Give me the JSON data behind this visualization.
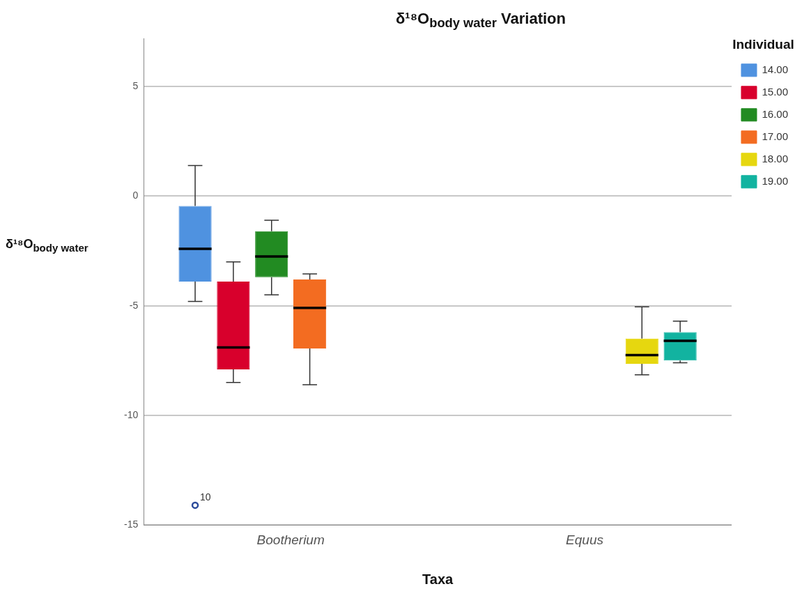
{
  "chart_data": {
    "type": "box",
    "title": "δ¹⁸O$_{body water}$ Variation",
    "xlabel": "Taxa",
    "ylabel": "δ¹⁸O$_{body water}$",
    "legend_title": "Individual",
    "categories": [
      "Bootherium",
      "Equus"
    ],
    "series": [
      {
        "name": "14.00",
        "color": "#4f92e0",
        "boxes": [
          {
            "low": -4.8,
            "q1": -3.9,
            "median": -2.4,
            "q3": -0.45,
            "high": 1.4,
            "outliers": [
              -14.1
            ]
          },
          null
        ]
      },
      {
        "name": "15.00",
        "color": "#d8002c",
        "boxes": [
          {
            "low": -8.5,
            "q1": -7.9,
            "median": -6.9,
            "q3": -3.9,
            "high": -3.0
          },
          null
        ]
      },
      {
        "name": "16.00",
        "color": "#228b22",
        "boxes": [
          {
            "low": -4.5,
            "q1": -3.7,
            "median": -2.75,
            "q3": -1.6,
            "high": -1.1
          },
          null
        ]
      },
      {
        "name": "17.00",
        "color": "#f36c21",
        "boxes": [
          {
            "low": -8.6,
            "q1": -6.95,
            "median": -5.1,
            "q3": -3.8,
            "high": -3.55
          },
          null
        ]
      },
      {
        "name": "18.00",
        "color": "#e6d70f",
        "boxes": [
          null,
          {
            "low": -8.15,
            "q1": -7.65,
            "median": -7.25,
            "q3": -6.5,
            "high": -5.05
          }
        ]
      },
      {
        "name": "19.00",
        "color": "#12b3a0",
        "boxes": [
          null,
          {
            "low": -7.6,
            "q1": -7.5,
            "median": -6.6,
            "q3": -6.2,
            "high": -5.7
          }
        ]
      }
    ],
    "ylim": [
      -15,
      7.2
    ],
    "yticks": [
      -15,
      -10,
      -5,
      0,
      5
    ],
    "grid": "y",
    "legend": "top right",
    "annotations": [
      "10"
    ]
  }
}
